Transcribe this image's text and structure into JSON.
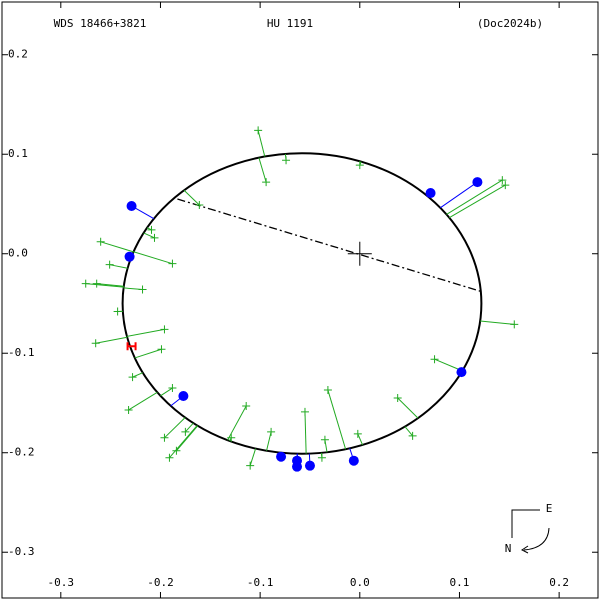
{
  "chart_data": {
    "type": "orbit",
    "title": "WDS 18466+3821",
    "subtitle": "HU 1191",
    "annotation": "(Doc2024b)",
    "compass": {
      "east": "E",
      "north": "N"
    },
    "xlim": [
      -0.359,
      0.239
    ],
    "ylim": [
      -0.346,
      0.253
    ],
    "xticks": [
      -0.3,
      -0.2,
      -0.1,
      {
        "value": 0,
        "label": "0.0"
      },
      0.1,
      0.2
    ],
    "yticks": [
      -0.3,
      -0.2,
      -0.1,
      {
        "value": 0,
        "label": "0.0"
      },
      0.1,
      0.2
    ],
    "orbit": {
      "center_x": -0.058,
      "center_y": -0.05,
      "rx": 0.18,
      "ry": 0.151,
      "color": "#000000"
    },
    "line_of_nodes": {
      "x": [
        -0.183,
        0.122
      ],
      "y": [
        0.055,
        -0.038
      ]
    },
    "series": [
      {
        "name": "visual",
        "marker": "plus",
        "color": "#22aa22",
        "x": [
          -0.102,
          -0.094,
          -0.074,
          -0.161,
          -0.26,
          -0.206,
          -0.209,
          -0.251,
          -0.275,
          -0.264,
          -0.188,
          -0.218,
          -0.243,
          -0.196,
          -0.265,
          -0.199,
          -0.228,
          -0.232,
          -0.188,
          -0.114,
          -0.196,
          -0.191,
          -0.184,
          -0.175,
          -0.129,
          -0.089,
          -0.11,
          -0.055,
          -0.032,
          -0.035,
          -0.038,
          -0.002,
          0.038,
          0.053,
          0.075,
          0.155,
          0.143,
          0.146,
          0
        ],
        "y": [
          0.124,
          0.072,
          0.094,
          0.049,
          0.012,
          0.016,
          0.024,
          -0.011,
          -0.03,
          -0.03,
          -0.01,
          -0.036,
          -0.058,
          -0.076,
          -0.09,
          -0.096,
          -0.124,
          -0.157,
          -0.135,
          -0.153,
          -0.185,
          -0.205,
          -0.198,
          -0.179,
          -0.185,
          -0.179,
          -0.213,
          -0.159,
          -0.137,
          -0.187,
          -0.205,
          -0.181,
          -0.145,
          -0.183,
          -0.106,
          -0.071,
          0.074,
          0.069,
          0.089
        ]
      },
      {
        "name": "speckle",
        "marker": "dot",
        "color": "#0000ff",
        "x": [
          -0.229,
          -0.231,
          0.071,
          0.118,
          0.102,
          -0.177,
          -0.079,
          -0.063,
          -0.063,
          -0.05,
          -0.006
        ],
        "y": [
          0.048,
          -0.003,
          0.061,
          0.072,
          -0.119,
          -0.143,
          -0.204,
          -0.208,
          -0.214,
          -0.213,
          -0.208
        ]
      },
      {
        "name": "latest",
        "marker": "bar",
        "color": "#ff0000",
        "x": [
          -0.229
        ],
        "y": [
          -0.093
        ]
      }
    ]
  }
}
